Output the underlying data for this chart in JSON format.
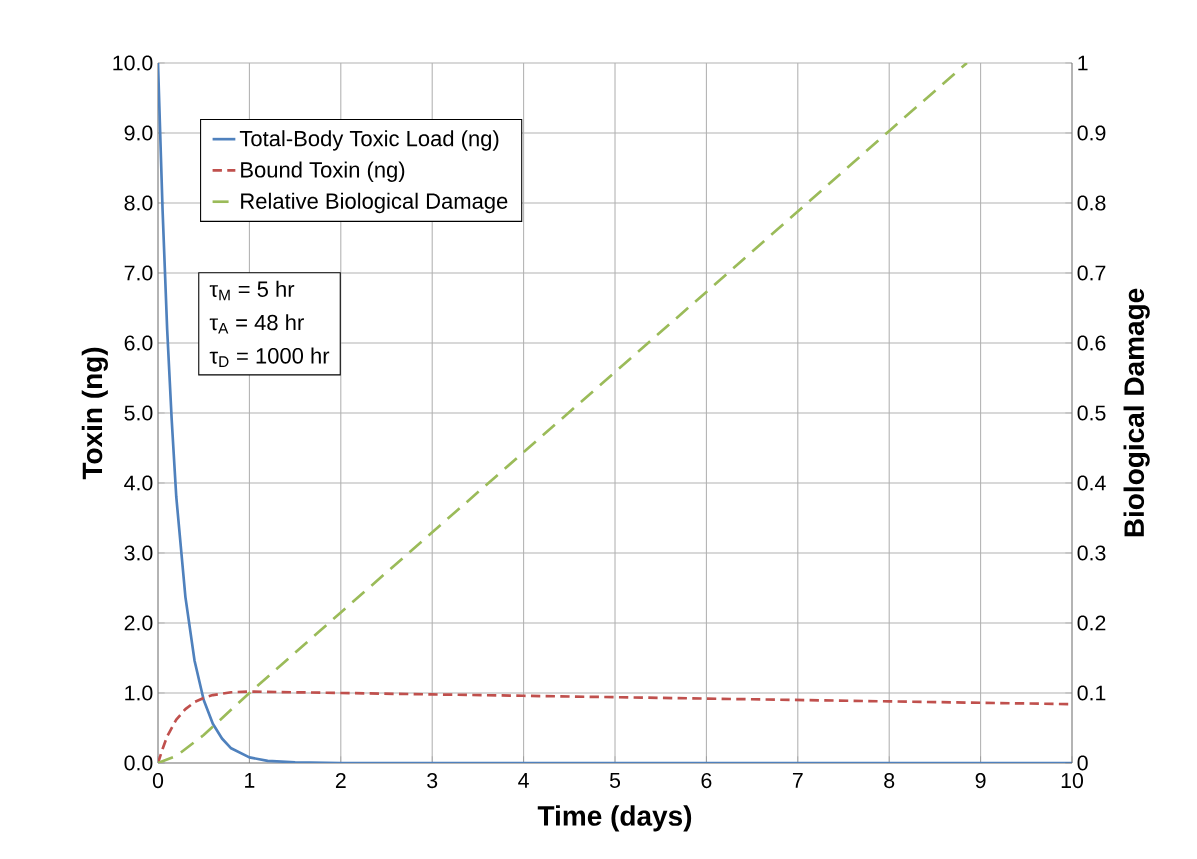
{
  "chart_data": {
    "type": "line",
    "xlabel": "Time (days)",
    "ylabel": "Toxin (ng)",
    "y2label": "Biological Damage",
    "xlim": [
      0,
      10
    ],
    "xticks": [
      0,
      1,
      2,
      3,
      4,
      5,
      6,
      7,
      8,
      9,
      10
    ],
    "ylim": [
      0,
      10
    ],
    "yticks": [
      {
        "value": 0,
        "label": "0.0"
      },
      {
        "value": 1,
        "label": "1.0"
      },
      {
        "value": 2,
        "label": "2.0"
      },
      {
        "value": 3,
        "label": "3.0"
      },
      {
        "value": 4,
        "label": "4.0"
      },
      {
        "value": 5,
        "label": "5.0"
      },
      {
        "value": 6,
        "label": "6.0"
      },
      {
        "value": 7,
        "label": "7.0"
      },
      {
        "value": 8,
        "label": "8.0"
      },
      {
        "value": 9,
        "label": "9.0"
      },
      {
        "value": 10,
        "label": "10.0"
      }
    ],
    "y2lim": [
      0,
      1
    ],
    "y2ticks": [
      0,
      0.1,
      0.2,
      0.3,
      0.4,
      0.5,
      0.6,
      0.7,
      0.8,
      0.9,
      1
    ],
    "grid": true,
    "legend": "top left",
    "marker": "none",
    "annotations": [
      "τ$_{M}$ = 5 hr",
      "τ$_{A}$ = 48 hr",
      "τ$_{D}$ = 1000 hr"
    ],
    "series": [
      {
        "name": "Total-Body Toxic Load (ng)",
        "color": "#4f81bd",
        "line_style": "solid",
        "x": [
          0,
          0.05,
          0.1,
          0.15,
          0.2,
          0.3,
          0.4,
          0.5,
          0.6,
          0.7,
          0.8,
          1.0,
          1.2,
          1.5,
          2,
          4,
          6,
          8,
          10
        ],
        "values": [
          10,
          7.9,
          6.2,
          4.9,
          3.8,
          2.37,
          1.46,
          0.9,
          0.56,
          0.35,
          0.21,
          0.08,
          0.03,
          0.01,
          0,
          0,
          0,
          0,
          0
        ]
      },
      {
        "name": "Bound Toxin (ng)",
        "color": "#c0504d",
        "line_style": "dashed",
        "x": [
          0,
          0.05,
          0.1,
          0.2,
          0.3,
          0.4,
          0.5,
          0.6,
          0.8,
          1.0,
          2,
          3,
          4,
          5,
          6,
          7,
          8,
          9,
          10
        ],
        "values": [
          0,
          0.2,
          0.38,
          0.62,
          0.77,
          0.87,
          0.93,
          0.97,
          1.01,
          1.02,
          1.0,
          0.98,
          0.96,
          0.94,
          0.92,
          0.9,
          0.88,
          0.86,
          0.84
        ]
      },
      {
        "name": "Relative Biological Damage",
        "color": "#9bbb59",
        "line_style": "dashed",
        "axis": "y2",
        "x": [
          0,
          0.2,
          0.5,
          1,
          2,
          4,
          6,
          8,
          8.85
        ],
        "values": [
          0,
          0.01,
          0.04,
          0.1,
          0.215,
          0.444,
          0.673,
          0.903,
          1.0
        ]
      }
    ]
  }
}
